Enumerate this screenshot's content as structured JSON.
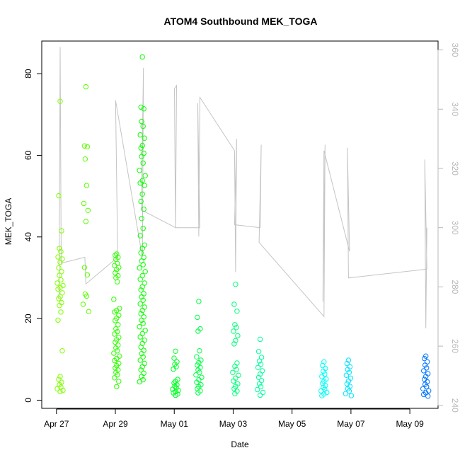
{
  "chart_data": {
    "type": "scatter",
    "title": "ATOM4 Southbound MEK_TOGA",
    "xlabel": "Date",
    "ylabel": "MEK_TOGA",
    "x_ticks": [
      "Apr 27",
      "Apr 29",
      "May 01",
      "May 03",
      "May 05",
      "May 07",
      "May 09"
    ],
    "y_ticks": [
      "0",
      "20",
      "40",
      "60",
      "80"
    ],
    "y2_ticks": [
      "240",
      "260",
      "280",
      "300",
      "320",
      "340",
      "360"
    ],
    "xlim": [
      "2016-04-26 12:00",
      "2016-05-09 23:00"
    ],
    "ylim": [
      -2,
      88
    ],
    "y2lim": [
      239,
      363
    ],
    "grid": false,
    "legend": "none",
    "point_style": "open circle",
    "color_scale": "rainbow hue by time: yellow-green (Apr 27) to blue (May 09)",
    "secondary_series_color": "#c4c4c4",
    "series": [
      {
        "type": "scatter",
        "axis": "left",
        "clusters": [
          {
            "date": "2016-04-27 03:00",
            "values": [
              73.2,
              50.1,
              41.5,
              37.2,
              36.4,
              35.1,
              34.6,
              33.8,
              32.4,
              31.5,
              30.6,
              29.5,
              28.7,
              28.1,
              27.6,
              27.2,
              26.3,
              25.4,
              24.9,
              23.9,
              23.2,
              21.6,
              19.6,
              12.1,
              5.8,
              5.1,
              4.4,
              3.8,
              3.2,
              2.8,
              2.4,
              2.1
            ]
          },
          {
            "date": "2016-04-28 00:00",
            "values": [
              76.8,
              62.3,
              62.1,
              59.1,
              52.6,
              48.2,
              46.5,
              43.8,
              32.5,
              30.7,
              26.0,
              25.5,
              23.5,
              21.7
            ]
          },
          {
            "date": "2016-04-29 01:00",
            "values": [
              35.8,
              35.5,
              35.0,
              34.5,
              33.5,
              33.0,
              32.5,
              32.0,
              31.2,
              30.5,
              30.0,
              29.0,
              24.7,
              22.5,
              22.0,
              21.6,
              20.8,
              20.1,
              19.5,
              18.5,
              17.5,
              16.8,
              16.2,
              15.4,
              14.8,
              14.2,
              13.5,
              12.8,
              12.1,
              11.5,
              10.8,
              10.2,
              9.7,
              9.0,
              8.5,
              7.9,
              7.4,
              6.8,
              6.2,
              5.5,
              4.6,
              3.3
            ]
          },
          {
            "date": "2016-04-29 22:00",
            "values": [
              84.1,
              71.8,
              71.4,
              68.3,
              67.1,
              65.0,
              64.2,
              62.4,
              61.8,
              60.5,
              59.7,
              58.1,
              56.3,
              55.0,
              53.8,
              53.2,
              52.6,
              50.5,
              48.7,
              46.8,
              44.5,
              42.1,
              40.3,
              38.0,
              37.2,
              36.1,
              35.0,
              34.1,
              33.2,
              32.4,
              31.5,
              30.5,
              29.6,
              28.7,
              27.8,
              27.0,
              26.1,
              25.3,
              24.5,
              23.6,
              22.8,
              22.0,
              21.2,
              20.4,
              19.6,
              18.8,
              18.0,
              17.1,
              16.3,
              15.5,
              14.7,
              13.9,
              13.0,
              12.2,
              11.4,
              10.6,
              9.8,
              9.0,
              8.2,
              7.4,
              6.6,
              5.8,
              5.0,
              4.5
            ]
          },
          {
            "date": "2016-05-01 01:00",
            "values": [
              12.0,
              10.3,
              9.4,
              8.8,
              8.2,
              7.6,
              5.1,
              4.6,
              4.2,
              3.8,
              3.4,
              3.0,
              2.7,
              2.4,
              2.1,
              1.8,
              1.5,
              1.2
            ]
          },
          {
            "date": "2016-05-01 20:00",
            "values": [
              24.2,
              20.3,
              17.5,
              16.9,
              12.1,
              10.6,
              9.8,
              9.2,
              8.6,
              8.0,
              7.4,
              6.8,
              6.2,
              5.6,
              5.0,
              4.4,
              3.8,
              3.3,
              2.8,
              2.3,
              1.8
            ]
          },
          {
            "date": "2016-05-03 02:00",
            "values": [
              28.4,
              23.5,
              21.8,
              18.5,
              17.8,
              16.9,
              15.8,
              14.6,
              13.8,
              9.1,
              8.3,
              7.5,
              6.8,
              6.1,
              5.4,
              4.7,
              4.0,
              3.4,
              2.8,
              2.2,
              1.6
            ]
          },
          {
            "date": "2016-05-03 22:00",
            "values": [
              14.9,
              11.9,
              10.5,
              9.6,
              8.8,
              8.0,
              7.2,
              6.4,
              5.6,
              4.8,
              4.0,
              3.3,
              2.6,
              1.9,
              1.2
            ]
          },
          {
            "date": "2016-05-06 02:00",
            "values": [
              9.4,
              8.5,
              7.8,
              7.1,
              6.4,
              5.8,
              5.2,
              4.6,
              4.1,
              3.6,
              3.1,
              2.7,
              2.3,
              1.9,
              1.5,
              1.1
            ]
          },
          {
            "date": "2016-05-06 22:00",
            "values": [
              9.8,
              9.0,
              8.2,
              7.5,
              6.8,
              6.1,
              5.4,
              4.7,
              4.0,
              3.4,
              2.8,
              2.2,
              1.6,
              1.1
            ]
          },
          {
            "date": "2016-05-09 13:00",
            "values": [
              10.8,
              10.2,
              9.4,
              8.6,
              7.9,
              7.2,
              6.5,
              5.8,
              5.1,
              4.5,
              3.9,
              3.3,
              2.8,
              2.3,
              1.8,
              1.4,
              1.0
            ]
          }
        ]
      },
      {
        "type": "line",
        "axis": "right",
        "points": [
          [
            "2016-04-27 03:00",
            276
          ],
          [
            "2016-04-27 03:00",
            361
          ],
          [
            "2016-04-27 03:00",
            288
          ],
          [
            "2016-04-28 00:00",
            290
          ],
          [
            "2016-04-28 00:00",
            281
          ],
          [
            "2016-04-29 01:00",
            290
          ],
          [
            "2016-04-29 01:00",
            343
          ],
          [
            "2016-04-29 22:00",
            290
          ],
          [
            "2016-04-29 22:00",
            354
          ],
          [
            "2016-04-29 22:00",
            306
          ],
          [
            "2016-05-01 01:00",
            300
          ],
          [
            "2016-05-01 01:00",
            348
          ],
          [
            "2016-05-01 01:00",
            347
          ],
          [
            "2016-05-01 01:00",
            300
          ],
          [
            "2016-05-01 20:00",
            300
          ],
          [
            "2016-05-01 20:00",
            342
          ],
          [
            "2016-05-01 20:00",
            297
          ],
          [
            "2016-05-01 20:00",
            344
          ],
          [
            "2016-05-03 02:00",
            326
          ],
          [
            "2016-05-03 02:00",
            285
          ],
          [
            "2016-05-03 02:00",
            330
          ],
          [
            "2016-05-03 02:00",
            301
          ],
          [
            "2016-05-03 22:00",
            300
          ],
          [
            "2016-05-03 22:00",
            328
          ],
          [
            "2016-05-03 22:00",
            295
          ],
          [
            "2016-05-06 02:00",
            270
          ],
          [
            "2016-05-06 02:00",
            328
          ],
          [
            "2016-05-06 02:00",
            275
          ],
          [
            "2016-05-06 02:00",
            326
          ],
          [
            "2016-05-06 22:00",
            292
          ],
          [
            "2016-05-06 22:00",
            327
          ],
          [
            "2016-05-06 22:00",
            283
          ],
          [
            "2016-05-09 13:00",
            286
          ],
          [
            "2016-05-09 13:00",
            323
          ],
          [
            "2016-05-09 13:00",
            266
          ],
          [
            "2016-05-09 13:00",
            300
          ]
        ]
      }
    ]
  },
  "colors": {
    "line": "#c4c4c4",
    "axis": "#000000",
    "right_axis": "#b8b8b8",
    "background": "#ffffff"
  }
}
